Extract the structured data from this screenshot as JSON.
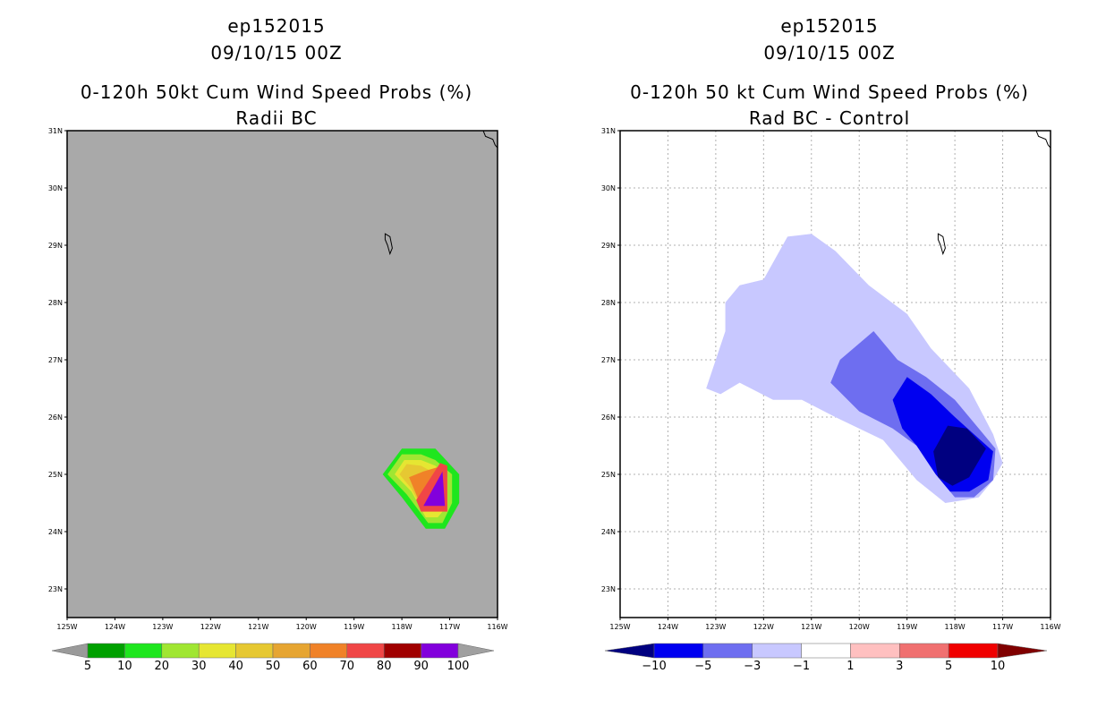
{
  "panels": [
    {
      "storm_id": "ep152015",
      "datetime": "09/10/15 00Z",
      "title": "0-120h 50kt Cum Wind Speed Probs (%)",
      "subtitle": "Radii BC"
    },
    {
      "storm_id": "ep152015",
      "datetime": "09/10/15 00Z",
      "title": "0-120h 50 kt Cum Wind Speed Probs (%)",
      "subtitle": "Rad BC - Control"
    }
  ],
  "chart_data": [
    {
      "type": "heatmap",
      "title": "0-120h 50kt Cum Wind Speed Probs (%)",
      "subtitle": "Radii BC",
      "x_tick_labels": [
        "125W",
        "124W",
        "123W",
        "122W",
        "121W",
        "120W",
        "119W",
        "118W",
        "117W",
        "116W"
      ],
      "y_tick_labels": [
        "23N",
        "24N",
        "25N",
        "26N",
        "27N",
        "28N",
        "29N",
        "30N",
        "31N"
      ],
      "xlim": [
        -125,
        -116
      ],
      "ylim": [
        22.5,
        31
      ],
      "grid": false,
      "background_color": "#a9a9a9",
      "colorbar": {
        "labels": [
          "5",
          "10",
          "20",
          "30",
          "40",
          "50",
          "60",
          "70",
          "80",
          "90",
          "100"
        ],
        "colors": [
          "#9a9a9a",
          "#00a000",
          "#1ee61e",
          "#a0e632",
          "#e6e632",
          "#e6c832",
          "#e6a532",
          "#f08228",
          "#f04646",
          "#a00000",
          "#8200dc",
          "#a0a0a0"
        ]
      },
      "contours": [
        {
          "level": 5,
          "color": "#1ee61e",
          "polygon": [
            [
              -118.4,
              25.0
            ],
            [
              -118.0,
              25.45
            ],
            [
              -117.3,
              25.45
            ],
            [
              -116.8,
              25.0
            ],
            [
              -116.8,
              24.5
            ],
            [
              -117.1,
              24.05
            ],
            [
              -117.5,
              24.05
            ],
            [
              -118.0,
              24.6
            ]
          ]
        },
        {
          "level": 10,
          "color": "#a0e632",
          "polygon": [
            [
              -118.3,
              25.0
            ],
            [
              -118.0,
              25.35
            ],
            [
              -117.6,
              25.35
            ],
            [
              -117.3,
              25.25
            ],
            [
              -116.95,
              25.0
            ],
            [
              -116.95,
              24.5
            ],
            [
              -117.15,
              24.15
            ],
            [
              -117.45,
              24.15
            ],
            [
              -117.9,
              24.65
            ]
          ]
        },
        {
          "level": 20,
          "color": "#e6e632",
          "polygon": [
            [
              -118.15,
              25.0
            ],
            [
              -117.95,
              25.25
            ],
            [
              -117.6,
              25.25
            ],
            [
              -117.3,
              25.15
            ],
            [
              -117.05,
              24.95
            ],
            [
              -117.05,
              24.45
            ],
            [
              -117.25,
              24.25
            ],
            [
              -117.5,
              24.25
            ],
            [
              -117.8,
              24.7
            ]
          ]
        },
        {
          "level": 40,
          "color": "#e6c832",
          "polygon": [
            [
              -118.05,
              25.0
            ],
            [
              -117.9,
              25.18
            ],
            [
              -117.6,
              25.15
            ],
            [
              -117.15,
              24.95
            ],
            [
              -117.15,
              24.4
            ],
            [
              -117.55,
              24.35
            ],
            [
              -117.8,
              24.75
            ]
          ]
        },
        {
          "level": 60,
          "color": "#f08228",
          "polygon": [
            [
              -117.85,
              24.95
            ],
            [
              -117.55,
              25.05
            ],
            [
              -117.15,
              25.15
            ],
            [
              -117.05,
              24.45
            ],
            [
              -117.55,
              24.35
            ]
          ]
        },
        {
          "level": 70,
          "color": "#f04646",
          "polygon": [
            [
              -117.7,
              24.55
            ],
            [
              -117.2,
              25.2
            ],
            [
              -117.05,
              25.15
            ],
            [
              -117.05,
              24.35
            ],
            [
              -117.6,
              24.35
            ]
          ]
        },
        {
          "level": 90,
          "color": "#8200dc",
          "polygon": [
            [
              -117.55,
              24.45
            ],
            [
              -117.15,
              25.05
            ],
            [
              -117.1,
              24.45
            ]
          ]
        }
      ],
      "island_label": ""
    },
    {
      "type": "heatmap",
      "title": "0-120h 50 kt Cum Wind Speed Probs (%)",
      "subtitle": "Rad BC - Control",
      "x_tick_labels": [
        "125W",
        "124W",
        "123W",
        "122W",
        "121W",
        "120W",
        "119W",
        "118W",
        "117W",
        "116W"
      ],
      "y_tick_labels": [
        "23N",
        "24N",
        "25N",
        "26N",
        "27N",
        "28N",
        "29N",
        "30N",
        "31N"
      ],
      "xlim": [
        -125,
        -116
      ],
      "ylim": [
        22.5,
        31
      ],
      "grid": true,
      "background_color": "#ffffff",
      "colorbar": {
        "labels": [
          "-10",
          "-5",
          "-3",
          "-1",
          "1",
          "3",
          "5",
          "10"
        ],
        "colors": [
          "#000080",
          "#0000f0",
          "#6e6ef0",
          "#c8c8ff",
          "#ffffff",
          "#ffc0c0",
          "#f07070",
          "#f00000",
          "#800000"
        ]
      },
      "contours": [
        {
          "level": -1,
          "color": "#c8c8ff",
          "polygon": [
            [
              -123.2,
              26.5
            ],
            [
              -123.0,
              27.0
            ],
            [
              -122.8,
              27.5
            ],
            [
              -122.8,
              28.0
            ],
            [
              -122.5,
              28.3
            ],
            [
              -122.0,
              28.4
            ],
            [
              -121.5,
              29.15
            ],
            [
              -121.0,
              29.2
            ],
            [
              -120.5,
              28.9
            ],
            [
              -119.8,
              28.3
            ],
            [
              -119.0,
              27.8
            ],
            [
              -118.5,
              27.2
            ],
            [
              -117.7,
              26.5
            ],
            [
              -117.2,
              25.7
            ],
            [
              -117.0,
              25.2
            ],
            [
              -117.2,
              24.9
            ],
            [
              -117.5,
              24.6
            ],
            [
              -117.8,
              24.55
            ],
            [
              -118.2,
              24.5
            ],
            [
              -118.8,
              24.9
            ],
            [
              -119.5,
              25.6
            ],
            [
              -120.5,
              26.0
            ],
            [
              -121.2,
              26.3
            ],
            [
              -121.8,
              26.3
            ],
            [
              -122.5,
              26.6
            ],
            [
              -122.9,
              26.4
            ]
          ]
        },
        {
          "level": -3,
          "color": "#6e6ef0",
          "polygon": [
            [
              -120.6,
              26.6
            ],
            [
              -120.4,
              27.0
            ],
            [
              -119.7,
              27.5
            ],
            [
              -119.2,
              27.0
            ],
            [
              -118.6,
              26.7
            ],
            [
              -118.0,
              26.3
            ],
            [
              -117.5,
              25.8
            ],
            [
              -117.15,
              25.45
            ],
            [
              -117.2,
              24.9
            ],
            [
              -117.6,
              24.6
            ],
            [
              -118.0,
              24.6
            ],
            [
              -118.4,
              25.0
            ],
            [
              -118.8,
              25.5
            ],
            [
              -119.3,
              25.8
            ],
            [
              -120.0,
              26.1
            ]
          ]
        },
        {
          "level": -5,
          "color": "#0000f0",
          "polygon": [
            [
              -119.3,
              26.3
            ],
            [
              -119.0,
              26.7
            ],
            [
              -118.5,
              26.4
            ],
            [
              -118.0,
              26.0
            ],
            [
              -117.6,
              25.7
            ],
            [
              -117.2,
              25.4
            ],
            [
              -117.3,
              24.9
            ],
            [
              -117.7,
              24.7
            ],
            [
              -118.1,
              24.7
            ],
            [
              -118.4,
              25.0
            ],
            [
              -118.8,
              25.5
            ],
            [
              -119.1,
              25.8
            ]
          ]
        },
        {
          "level": -10,
          "color": "#000080",
          "polygon": [
            [
              -118.45,
              25.4
            ],
            [
              -118.15,
              25.85
            ],
            [
              -117.75,
              25.8
            ],
            [
              -117.35,
              25.45
            ],
            [
              -117.7,
              24.95
            ],
            [
              -118.05,
              24.8
            ],
            [
              -118.35,
              24.95
            ]
          ]
        }
      ],
      "island_label": ""
    }
  ]
}
